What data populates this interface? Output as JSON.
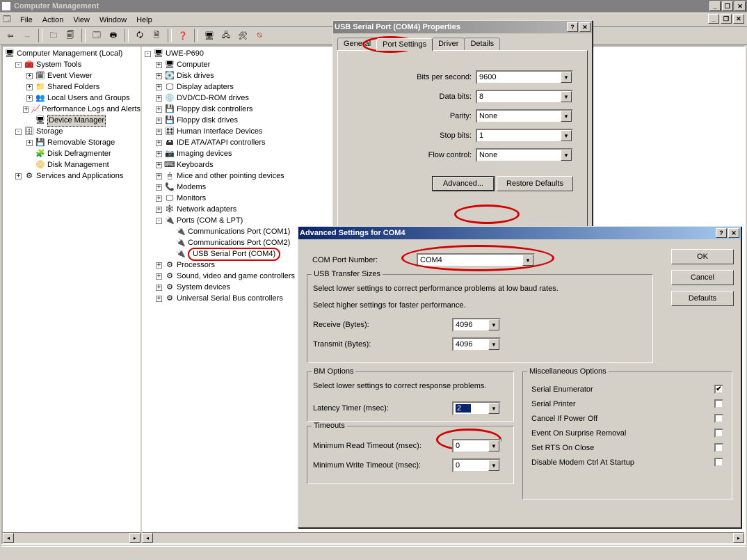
{
  "main_window": {
    "title": "Computer Management",
    "menus": [
      "File",
      "Action",
      "View",
      "Window",
      "Help"
    ]
  },
  "left_tree": {
    "root": "Computer Management (Local)",
    "system_tools": {
      "label": "System Tools",
      "items": [
        "Event Viewer",
        "Shared Folders",
        "Local Users and Groups",
        "Performance Logs and Alerts"
      ],
      "device_manager": "Device Manager"
    },
    "storage": {
      "label": "Storage",
      "items": [
        "Removable Storage",
        "Disk Defragmenter",
        "Disk Management"
      ]
    },
    "services": "Services and Applications"
  },
  "right_tree": {
    "root": "UWE-P690",
    "nodes": [
      "Computer",
      "Disk drives",
      "Display adapters",
      "DVD/CD-ROM drives",
      "Floppy disk controllers",
      "Floppy disk drives",
      "Human Interface Devices",
      "IDE ATA/ATAPI controllers",
      "Imaging devices",
      "Keyboards",
      "Mice and other pointing devices",
      "Modems",
      "Monitors",
      "Network adapters"
    ],
    "ports": {
      "label": "Ports (COM & LPT)",
      "children": [
        "Communications Port (COM1)",
        "Communications Port (COM2)",
        "USB Serial Port (COM4)"
      ]
    },
    "rest": [
      "Processors",
      "Sound, video and game controllers",
      "System devices",
      "Universal Serial Bus controllers"
    ]
  },
  "props_dialog": {
    "title": "USB Serial Port (COM4) Properties",
    "tabs": [
      "General",
      "Port Settings",
      "Driver",
      "Details"
    ],
    "active_tab": 1,
    "fields": {
      "bits_per_second": {
        "label": "Bits per second:",
        "value": "9600"
      },
      "data_bits": {
        "label": "Data bits:",
        "value": "8"
      },
      "parity": {
        "label": "Parity:",
        "value": "None"
      },
      "stop_bits": {
        "label": "Stop bits:",
        "value": "1"
      },
      "flow_control": {
        "label": "Flow control:",
        "value": "None"
      }
    },
    "advanced_btn": "Advanced...",
    "restore_btn": "Restore Defaults"
  },
  "adv_dialog": {
    "title": "Advanced Settings for COM4",
    "com_port_label": "COM Port Number:",
    "com_port_value": "COM4",
    "buttons": {
      "ok": "OK",
      "cancel": "Cancel",
      "defaults": "Defaults"
    },
    "usb": {
      "title": "USB Transfer Sizes",
      "hint1": "Select lower settings to correct performance problems at low baud rates.",
      "hint2": "Select higher settings for faster performance.",
      "receive_label": "Receive (Bytes):",
      "receive_value": "4096",
      "transmit_label": "Transmit (Bytes):",
      "transmit_value": "4096"
    },
    "bm": {
      "title": "BM Options",
      "hint": "Select lower settings to correct response problems.",
      "latency_label": "Latency Timer (msec):",
      "latency_value": "2"
    },
    "timeouts": {
      "title": "Timeouts",
      "min_read_label": "Minimum Read Timeout (msec):",
      "min_read_value": "0",
      "min_write_label": "Minimum Write Timeout (msec):",
      "min_write_value": "0"
    },
    "misc": {
      "title": "Miscellaneous Options",
      "items": [
        {
          "label": "Serial Enumerator",
          "checked": true
        },
        {
          "label": "Serial Printer",
          "checked": false
        },
        {
          "label": "Cancel If Power Off",
          "checked": false
        },
        {
          "label": "Event On Surprise Removal",
          "checked": false
        },
        {
          "label": "Set RTS On Close",
          "checked": false
        },
        {
          "label": "Disable Modem Ctrl At Startup",
          "checked": false
        }
      ]
    }
  }
}
